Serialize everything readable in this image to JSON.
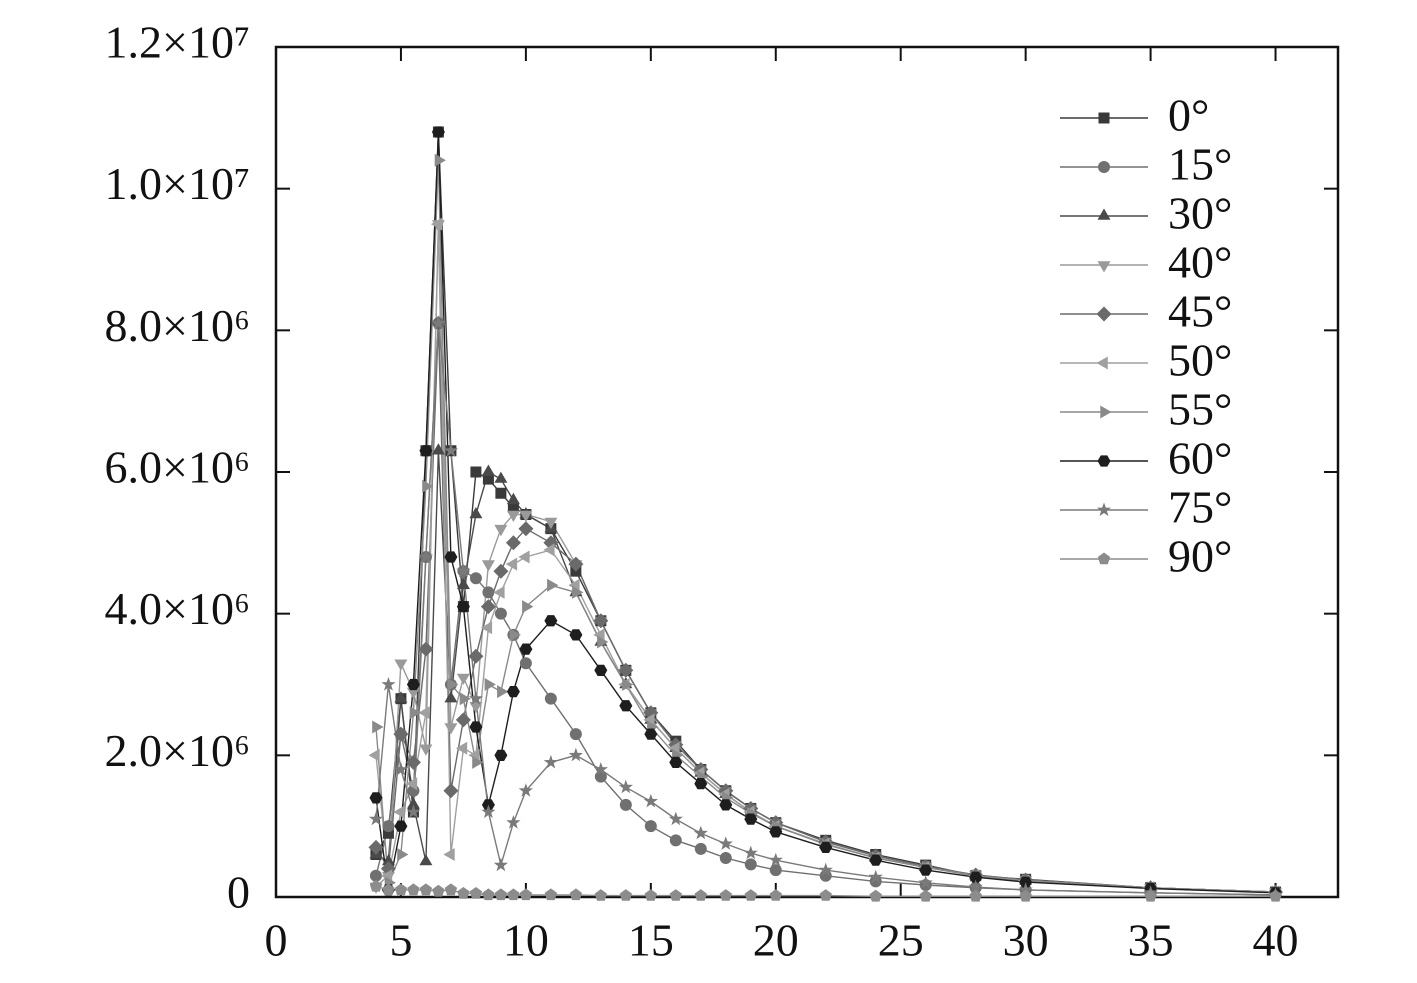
{
  "chart_data": {
    "type": "line",
    "x": [
      4,
      4.5,
      5,
      5.5,
      6,
      6.5,
      7,
      7.5,
      8,
      8.5,
      9,
      9.5,
      10,
      11,
      12,
      13,
      14,
      15,
      16,
      17,
      18,
      19,
      20,
      22,
      24,
      26,
      28,
      30,
      35,
      40
    ],
    "xlim": [
      0,
      42.5
    ],
    "xticks": [
      0,
      5,
      10,
      15,
      20,
      25,
      30,
      35,
      40
    ],
    "ylim": [
      0,
      12000000
    ],
    "yticks": [
      0,
      {
        "value": 2000000,
        "label": "2.0×10⁶"
      },
      {
        "value": 4000000,
        "label": "4.0×10⁶"
      },
      {
        "value": 6000000,
        "label": "6.0×10⁶"
      },
      {
        "value": 8000000,
        "label": "8.0×10⁶"
      },
      {
        "value": 10000000,
        "label": "1.0×10⁷"
      },
      {
        "value": 12000000,
        "label": "1.2×10⁷"
      }
    ],
    "legend": "upper right",
    "series": [
      {
        "name": "0°",
        "color": "#3a3a3a",
        "marker": "square",
        "values": [
          600000.0,
          900000.0,
          2800000.0,
          1200000.0,
          6300000.0,
          10800000.0,
          6300000.0,
          4100000.0,
          6000000.0,
          5900000.0,
          5700000.0,
          5500000.0,
          5400000.0,
          5200000.0,
          4600000.0,
          3900000.0,
          3200000.0,
          2600000.0,
          2200000.0,
          1800000.0,
          1500000.0,
          1250000.0,
          1050000.0,
          800000.0,
          600000.0,
          450000.0,
          300000.0,
          250000.0,
          130000.0,
          70000.0
        ]
      },
      {
        "name": "15°",
        "color": "#707070",
        "marker": "circle",
        "values": [
          300000.0,
          1000000.0,
          2300000.0,
          1500000.0,
          4800000.0,
          8100000.0,
          3000000.0,
          4600000.0,
          4500000.0,
          4300000.0,
          4000000.0,
          3700000.0,
          3300000.0,
          2800000.0,
          2300000.0,
          1700000.0,
          1300000.0,
          1000000.0,
          800000.0,
          680000.0,
          550000.0,
          460000.0,
          380000.0,
          300000.0,
          220000.0,
          170000.0,
          130000.0,
          100000.0,
          60000.0,
          30000.0
        ]
      },
      {
        "name": "30°",
        "color": "#4a4a4a",
        "marker": "triangle-up",
        "values": [
          600000.0,
          500000.0,
          2800000.0,
          1300000.0,
          500000.0,
          6300000.0,
          2800000.0,
          4400000.0,
          5400000.0,
          6000000.0,
          5900000.0,
          5600000.0,
          5400000.0,
          5200000.0,
          4300000.0,
          3600000.0,
          3000000.0,
          2500000.0,
          2100000.0,
          1750000.0,
          1450000.0,
          1200000.0,
          1000000.0,
          750000.0,
          550000.0,
          420000.0,
          300000.0,
          230000.0,
          130000.0,
          70000.0
        ]
      },
      {
        "name": "40°",
        "color": "#9a9a9a",
        "marker": "triangle-down",
        "values": [
          150000.0,
          300000.0,
          3300000.0,
          2900000.0,
          2100000.0,
          9500000.0,
          2400000.0,
          3100000.0,
          2700000.0,
          4700000.0,
          5200000.0,
          5400000.0,
          5400000.0,
          5300000.0,
          4700000.0,
          3900000.0,
          3200000.0,
          2600000.0,
          2150000.0,
          1800000.0,
          1500000.0,
          1250000.0,
          1050000.0,
          780000.0,
          580000.0,
          430000.0,
          310000.0,
          240000.0,
          130000.0,
          70000.0
        ]
      },
      {
        "name": "45°",
        "color": "#6a6a6a",
        "marker": "diamond",
        "values": [
          700000.0,
          400000.0,
          2300000.0,
          1900000.0,
          3500000.0,
          8100000.0,
          1500000.0,
          2500000.0,
          3400000.0,
          4100000.0,
          4600000.0,
          5000000.0,
          5200000.0,
          5000000.0,
          4700000.0,
          3900000.0,
          3200000.0,
          2600000.0,
          2150000.0,
          1800000.0,
          1500000.0,
          1250000.0,
          1050000.0,
          780000.0,
          580000.0,
          430000.0,
          310000.0,
          240000.0,
          130000.0,
          70000.0
        ]
      },
      {
        "name": "50°",
        "color": "#a0a0a0",
        "marker": "triangle-left",
        "values": [
          2000000.0,
          300000.0,
          1200000.0,
          1600000.0,
          2600000.0,
          9500000.0,
          600000.0,
          2100000.0,
          2000000.0,
          3800000.0,
          4300000.0,
          4700000.0,
          4800000.0,
          4900000.0,
          4400000.0,
          3700000.0,
          3000000.0,
          2500000.0,
          2100000.0,
          1750000.0,
          1450000.0,
          1200000.0,
          1000000.0,
          750000.0,
          550000.0,
          420000.0,
          300000.0,
          230000.0,
          130000.0,
          70000.0
        ]
      },
      {
        "name": "55°",
        "color": "#8a8a8a",
        "marker": "triangle-right",
        "values": [
          2400000.0,
          200000.0,
          600000.0,
          2600000.0,
          5800000.0,
          10400000.0,
          3000000.0,
          2800000.0,
          1900000.0,
          3000000.0,
          2900000.0,
          3700000.0,
          4100000.0,
          4400000.0,
          4300000.0,
          3600000.0,
          3000000.0,
          2400000.0,
          2000000.0,
          1700000.0,
          1400000.0,
          1180000.0,
          1000000.0,
          740000.0,
          550000.0,
          420000.0,
          300000.0,
          230000.0,
          130000.0,
          70000.0
        ]
      },
      {
        "name": "60°",
        "color": "#1e1e1e",
        "marker": "hexagon",
        "values": [
          1400000.0,
          100000.0,
          1000000.0,
          3000000.0,
          6300000.0,
          10800000.0,
          4800000.0,
          4100000.0,
          2400000.0,
          1300000.0,
          2000000.0,
          2900000.0,
          3500000.0,
          3900000.0,
          3700000.0,
          3200000.0,
          2700000.0,
          2300000.0,
          1900000.0,
          1600000.0,
          1300000.0,
          1100000.0,
          920000.0,
          700000.0,
          520000.0,
          380000.0,
          280000.0,
          210000.0,
          120000.0,
          60000.0
        ]
      },
      {
        "name": "75°",
        "color": "#7a7a7a",
        "marker": "star",
        "values": [
          1100000.0,
          3000000.0,
          1800000.0,
          1200000.0,
          4800000.0,
          8100000.0,
          6300000.0,
          4600000.0,
          2800000.0,
          1200000.0,
          450000.0,
          1050000.0,
          1500000.0,
          1900000.0,
          2000000.0,
          1800000.0,
          1550000.0,
          1350000.0,
          1100000.0,
          900000.0,
          750000.0,
          620000.0,
          520000.0,
          380000.0,
          280000.0,
          200000.0,
          140000.0,
          100000.0,
          60000.0,
          30000.0
        ]
      },
      {
        "name": "90°",
        "color": "#8c8c8c",
        "marker": "pentagon",
        "values": [
          150000.0,
          100000.0,
          100000.0,
          100000.0,
          100000.0,
          80000.0,
          100000.0,
          50000.0,
          50000.0,
          30000.0,
          30000.0,
          30000.0,
          30000.0,
          30000.0,
          30000.0,
          20000.0,
          20000.0,
          20000.0,
          20000.0,
          20000.0,
          20000.0,
          20000.0,
          20000.0,
          20000.0,
          10000.0,
          10000.0,
          10000.0,
          10000.0,
          10000.0,
          10000.0
        ]
      }
    ]
  }
}
